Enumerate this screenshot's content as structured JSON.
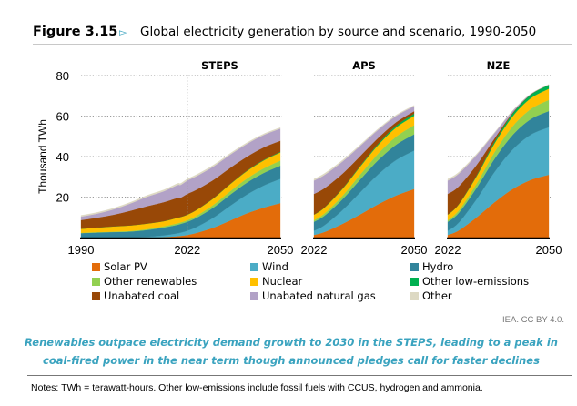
{
  "header": {
    "figure_number": "Figure 3.15",
    "arrow_icon": "triangle-right-icon",
    "title": "Global electricity generation by source and scenario, 1990-2050"
  },
  "chart_data": {
    "type": "area",
    "stacked": true,
    "title": "Global electricity generation by source and scenario, 1990-2050",
    "ylabel": "Thousand TWh",
    "ylim": [
      0,
      80
    ],
    "yticks": [
      20,
      40,
      60,
      80
    ],
    "grid": "horizontal dotted",
    "legend_position": "bottom",
    "sources": [
      "Solar PV",
      "Wind",
      "Hydro",
      "Other renewables",
      "Nuclear",
      "Other low-emissions",
      "Unabated coal",
      "Unabated natural gas",
      "Other"
    ],
    "colors": [
      "#e36c0a",
      "#4bacc6",
      "#31849b",
      "#92d050",
      "#ffc000",
      "#00b050",
      "#984807",
      "#b2a2c7",
      "#ddd9c3"
    ],
    "panels": [
      {
        "name": "STEPS",
        "x": [
          1990,
          1995,
          2000,
          2005,
          2010,
          2015,
          2019,
          2020,
          2022,
          2025,
          2030,
          2035,
          2040,
          2045,
          2050
        ],
        "xticks": [
          "1990",
          "2022",
          "2050"
        ],
        "series": [
          {
            "name": "Solar PV",
            "values": [
              0,
              0,
              0,
              0,
              0.03,
              0.25,
              0.7,
              0.85,
              1.3,
              2.4,
              5.0,
              8.5,
              12.0,
              14.8,
              17.0
            ]
          },
          {
            "name": "Wind",
            "values": [
              0,
              0,
              0.03,
              0.1,
              0.35,
              0.85,
              1.4,
              1.6,
              2.1,
              3.0,
              5.0,
              7.3,
              9.3,
              10.9,
              12.0
            ]
          },
          {
            "name": "Hydro",
            "values": [
              2.2,
              2.5,
              2.7,
              2.9,
              3.4,
              3.9,
              4.2,
              4.3,
              4.4,
              4.6,
              5.0,
              5.5,
              5.9,
              6.2,
              6.5
            ]
          },
          {
            "name": "Other renewables",
            "values": [
              0.15,
              0.18,
              0.22,
              0.28,
              0.42,
              0.6,
              0.72,
              0.75,
              0.8,
              1.0,
              1.35,
              1.7,
              2.0,
              2.3,
              2.5
            ]
          },
          {
            "name": "Nuclear",
            "values": [
              2.0,
              2.3,
              2.6,
              2.75,
              2.75,
              2.55,
              2.8,
              2.7,
              2.7,
              2.9,
              3.2,
              3.5,
              3.7,
              3.9,
              4.0
            ]
          },
          {
            "name": "Other low-emissions",
            "values": [
              0,
              0,
              0,
              0,
              0,
              0,
              0,
              0,
              0.05,
              0.05,
              0.1,
              0.15,
              0.2,
              0.25,
              0.3
            ]
          },
          {
            "name": "Unabated coal",
            "values": [
              4.3,
              4.9,
              5.8,
              7.3,
              8.6,
              9.4,
              9.8,
              9.5,
              10.2,
              9.9,
              9.0,
              7.9,
              6.9,
              6.2,
              5.5
            ]
          },
          {
            "name": "Unabated natural gas",
            "values": [
              1.7,
              2.0,
              2.7,
              3.6,
              4.7,
              5.4,
              6.3,
              6.3,
              6.6,
              6.7,
              6.6,
              6.5,
              6.3,
              6.1,
              6.0
            ]
          },
          {
            "name": "Other",
            "values": [
              0.6,
              0.6,
              0.6,
              0.6,
              0.65,
              0.7,
              0.75,
              0.75,
              0.8,
              0.75,
              0.7,
              0.65,
              0.6,
              0.55,
              0.5
            ]
          }
        ]
      },
      {
        "name": "APS",
        "x": [
          2022,
          2025,
          2030,
          2035,
          2040,
          2045,
          2050
        ],
        "xticks": [
          "2022",
          "2050"
        ],
        "series": [
          {
            "name": "Solar PV",
            "values": [
              1.3,
              2.8,
              6.8,
              11.5,
              16.5,
              20.8,
              24.0
            ]
          },
          {
            "name": "Wind",
            "values": [
              2.1,
              3.4,
              6.8,
              11.0,
              14.8,
              17.5,
              19.0
            ]
          },
          {
            "name": "Hydro",
            "values": [
              4.4,
              4.7,
              5.4,
              6.3,
              7.0,
              7.6,
              8.0
            ]
          },
          {
            "name": "Other renewables",
            "values": [
              0.8,
              1.1,
              1.7,
              2.5,
              3.3,
              4.0,
              4.5
            ]
          },
          {
            "name": "Nuclear",
            "values": [
              2.7,
              2.9,
              3.4,
              3.9,
              4.2,
              4.5,
              4.6
            ]
          },
          {
            "name": "Other low-emissions",
            "values": [
              0.05,
              0.1,
              0.2,
              0.4,
              0.6,
              0.9,
              1.1
            ]
          },
          {
            "name": "Unabated coal",
            "values": [
              10.2,
              9.5,
              7.3,
              4.8,
              2.9,
              1.7,
              1.2
            ]
          },
          {
            "name": "Unabated natural gas",
            "values": [
              6.6,
              6.5,
              6.0,
              5.0,
              4.0,
              3.1,
              2.5
            ]
          },
          {
            "name": "Other",
            "values": [
              0.8,
              0.75,
              0.65,
              0.55,
              0.5,
              0.45,
              0.4
            ]
          }
        ]
      },
      {
        "name": "NZE",
        "x": [
          2022,
          2025,
          2030,
          2035,
          2040,
          2045,
          2050
        ],
        "xticks": [
          "2022",
          "2050"
        ],
        "series": [
          {
            "name": "Solar PV",
            "values": [
              1.3,
              3.5,
              10.0,
              17.5,
              24.0,
              28.5,
              31.0
            ]
          },
          {
            "name": "Wind",
            "values": [
              2.1,
              3.8,
              9.0,
              15.0,
              19.5,
              22.3,
              23.5
            ]
          },
          {
            "name": "Hydro",
            "values": [
              4.4,
              4.8,
              5.6,
              6.5,
              7.2,
              7.7,
              8.0
            ]
          },
          {
            "name": "Other renewables",
            "values": [
              0.8,
              1.2,
              2.1,
              3.3,
              4.3,
              5.0,
              5.5
            ]
          },
          {
            "name": "Nuclear",
            "values": [
              2.7,
              3.0,
              3.6,
              4.3,
              4.9,
              5.3,
              5.5
            ]
          },
          {
            "name": "Other low-emissions",
            "values": [
              0.05,
              0.1,
              0.4,
              0.9,
              1.4,
              1.8,
              2.0
            ]
          },
          {
            "name": "Unabated coal",
            "values": [
              10.2,
              8.8,
              5.2,
              1.6,
              0.4,
              0.1,
              0
            ]
          },
          {
            "name": "Unabated natural gas",
            "values": [
              6.6,
              6.3,
              4.9,
              2.6,
              0.9,
              0.2,
              0
            ]
          },
          {
            "name": "Other",
            "values": [
              0.8,
              0.7,
              0.5,
              0.3,
              0.15,
              0.05,
              0
            ]
          }
        ]
      }
    ]
  },
  "legend": [
    {
      "label": "Solar PV",
      "color": "#e36c0a"
    },
    {
      "label": "Wind",
      "color": "#4bacc6"
    },
    {
      "label": "Hydro",
      "color": "#31849b"
    },
    {
      "label": "Other renewables",
      "color": "#92d050"
    },
    {
      "label": "Nuclear",
      "color": "#ffc000"
    },
    {
      "label": "Other low-emissions",
      "color": "#00b050"
    },
    {
      "label": "Unabated coal",
      "color": "#984807"
    },
    {
      "label": "Unabated natural gas",
      "color": "#b2a2c7"
    },
    {
      "label": "Other",
      "color": "#ddd9c3"
    }
  ],
  "credit": "IEA. CC BY 4.0.",
  "caption": "Renewables outpace electricity demand growth to 2030 in the STEPS, leading to a peak in coal-fired power in the near term though announced pledges call for faster declines",
  "notes": "Notes: TWh = terawatt-hours. Other low-emissions include fossil fuels with CCUS, hydrogen and ammonia."
}
